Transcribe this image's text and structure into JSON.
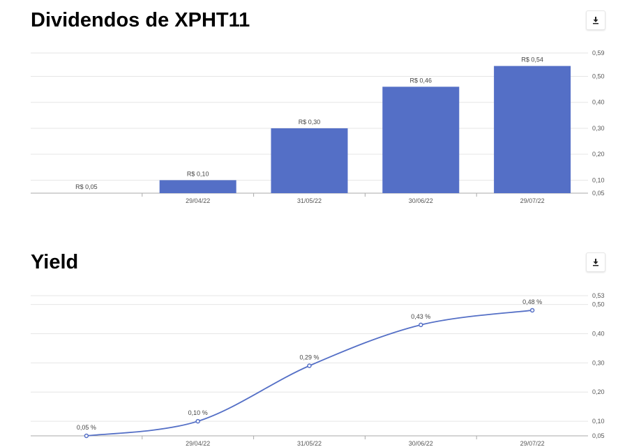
{
  "charts": [
    {
      "title": "Dividendos de XPHT11",
      "download_icon": "download-icon"
    },
    {
      "title": "Yield",
      "download_icon": "download-icon"
    }
  ],
  "colors": {
    "bar": "#546fc6",
    "line": "#546fc6",
    "grid": "#e6e6e6",
    "axis": "#aaaaaa"
  },
  "chart_data": [
    {
      "type": "bar",
      "title": "Dividendos de XPHT11",
      "categories": [
        "",
        "29/04/22",
        "31/05/22",
        "30/06/22",
        "29/07/22"
      ],
      "values": [
        0.05,
        0.1,
        0.3,
        0.46,
        0.54
      ],
      "data_labels": [
        "R$ 0,05",
        "R$ 0,10",
        "R$ 0,30",
        "R$ 0,46",
        "R$ 0,54"
      ],
      "y_ticks": [
        "0,05",
        "0,10",
        "0,20",
        "0,30",
        "0,40",
        "0,50",
        "0,59"
      ],
      "y_tick_values": [
        0.05,
        0.1,
        0.2,
        0.3,
        0.4,
        0.5,
        0.59
      ],
      "ylim": [
        0.05,
        0.59
      ],
      "y_axis_side": "right",
      "grid": true
    },
    {
      "type": "line",
      "title": "Yield",
      "categories": [
        "",
        "29/04/22",
        "31/05/22",
        "30/06/22",
        "29/07/22"
      ],
      "values": [
        0.05,
        0.1,
        0.29,
        0.43,
        0.48
      ],
      "data_labels": [
        "0,05 %",
        "0,10 %",
        "0,29 %",
        "0,43 %",
        "0,48 %"
      ],
      "y_ticks": [
        "0,05",
        "0,10",
        "0,20",
        "0,30",
        "0,40",
        "0,50",
        "0,53"
      ],
      "y_tick_values": [
        0.05,
        0.1,
        0.2,
        0.3,
        0.4,
        0.5,
        0.53
      ],
      "ylim": [
        0.05,
        0.53
      ],
      "y_axis_side": "right",
      "grid": true
    }
  ]
}
